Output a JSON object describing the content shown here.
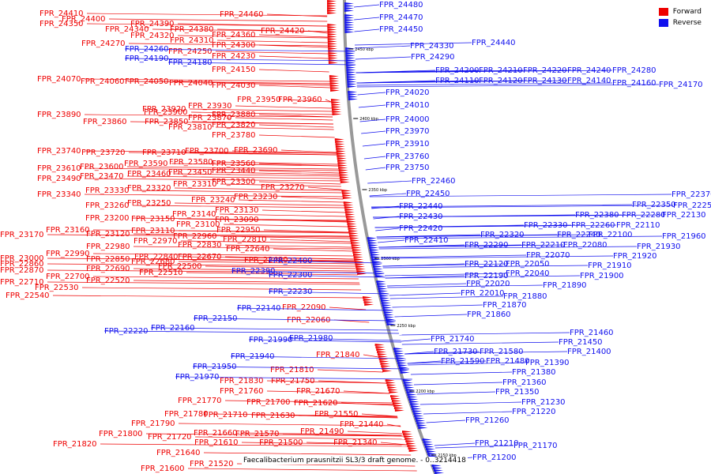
{
  "caption": "Faecalibacterium prausnitzii SL3/3 draft genome. - 0..3214418",
  "legend": [
    {
      "label": "Forward",
      "color": "#ee0000"
    },
    {
      "label": "Reverse",
      "color": "#1010ee"
    }
  ],
  "colors": {
    "forward": "#ee0000",
    "reverse": "#1010ee",
    "backbone": "#999999"
  },
  "scale_marks": [
    "2450 kbp",
    "2400 kbp",
    "2350 kbp",
    "2300 kbp",
    "2250 kbp",
    "2200 kbp",
    "2150 kbp"
  ],
  "forward_labels": [
    "FPR_24410",
    "FPR_24400",
    "FPR_24350",
    "FPR_24390",
    "FPR_24340",
    "FPR_24380",
    "FPR_24320",
    "FPR_24360",
    "FPR_24420",
    "FPR_24460",
    "FPR_24310",
    "FPR_24270",
    "FPR_24300",
    "FPR_24250",
    "FPR_24230",
    "FPR_24150",
    "FPR_24070",
    "FPR_24060",
    "FPR_24050",
    "FPR_24040",
    "FPR_24030",
    "FPR_23950",
    "FPR_23960",
    "FPR_23930",
    "FPR_23920",
    "FPR_23900",
    "FPR_23890",
    "FPR_23880",
    "FPR_23870",
    "FPR_23860",
    "FPR_23850",
    "FPR_23820",
    "FPR_23810",
    "FPR_23780",
    "FPR_23740",
    "FPR_23720",
    "FPR_23710",
    "FPR_23700",
    "FPR_23690",
    "FPR_23590",
    "FPR_23580",
    "FPR_23560",
    "FPR_23610",
    "FPR_23600",
    "FPR_23470",
    "FPR_23460",
    "FPR_23450",
    "FPR_23440",
    "FPR_23490",
    "FPR_23300",
    "FPR_23310",
    "FPR_23320",
    "FPR_23330",
    "FPR_23270",
    "FPR_23340",
    "FPR_23240",
    "FPR_23230",
    "FPR_23260",
    "FPR_23250",
    "FPR_23140",
    "FPR_23130",
    "FPR_23200",
    "FPR_23150",
    "FPR_23090",
    "FPR_23100",
    "FPR_23110",
    "FPR_23160",
    "FPR_23120",
    "FPR_22960",
    "FPR_22950",
    "FPR_23170",
    "FPR_22970",
    "FPR_22810",
    "FPR_22980",
    "FPR_22830",
    "FPR_22990",
    "FPR_22840",
    "FPR_22640",
    "FPR_23000",
    "FPR_22850",
    "FPR_22670",
    "FPR_22480",
    "FPR_22860",
    "FPR_22680",
    "FPR_22500",
    "FPR_22870",
    "FPR_22690",
    "FPR_22700",
    "FPR_22510",
    "FPR_22710",
    "FPR_22520",
    "FPR_22530",
    "FPR_22540",
    "FPR_22090",
    "FPR_22060",
    "FPR_21840",
    "FPR_21810",
    "FPR_21830",
    "FPR_21750",
    "FPR_21760",
    "FPR_21670",
    "FPR_21770",
    "FPR_21700",
    "FPR_21620",
    "FPR_21780",
    "FPR_21710",
    "FPR_21630",
    "FPR_21550",
    "FPR_21790",
    "FPR_21440",
    "FPR_21800",
    "FPR_21720",
    "FPR_21660",
    "FPR_21570",
    "FPR_21490",
    "FPR_21820",
    "FPR_21610",
    "FPR_21500",
    "FPR_21340",
    "FPR_21640",
    "FPR_21600",
    "FPR_21520"
  ],
  "reverse_labels": [
    "FPR_24480",
    "FPR_24470",
    "FPR_24450",
    "FPR_24440",
    "FPR_24330",
    "FPR_24260",
    "FPR_24190",
    "FPR_24180",
    "FPR_24290",
    "FPR_24200",
    "FPR_24210",
    "FPR_24220",
    "FPR_24240",
    "FPR_24280",
    "FPR_24110",
    "FPR_24120",
    "FPR_24130",
    "FPR_24140",
    "FPR_24160",
    "FPR_24170",
    "FPR_24020",
    "FPR_24010",
    "FPR_24000",
    "FPR_23970",
    "FPR_23910",
    "FPR_23760",
    "FPR_23750",
    "FPR_22460",
    "FPR_22450",
    "FPR_22440",
    "FPR_22430",
    "FPR_22420",
    "FPR_22410",
    "FPR_22370",
    "FPR_22350",
    "FPR_22250",
    "FPR_22380",
    "FPR_22280",
    "FPR_22130",
    "FPR_22330",
    "FPR_22260",
    "FPR_22110",
    "FPR_22320",
    "FPR_22240",
    "FPR_22100",
    "FPR_22290",
    "FPR_22210",
    "FPR_22080",
    "FPR_21960",
    "FPR_21930",
    "FPR_22070",
    "FPR_21920",
    "FPR_22400",
    "FPR_22120",
    "FPR_22050",
    "FPR_21910",
    "FPR_22390",
    "FPR_22190",
    "FPR_22040",
    "FPR_21900",
    "FPR_22300",
    "FPR_22020",
    "FPR_21890",
    "FPR_22230",
    "FPR_22010",
    "FPR_21880",
    "FPR_21870",
    "FPR_21860",
    "FPR_22140",
    "FPR_22150",
    "FPR_22160",
    "FPR_22220",
    "FPR_21990",
    "FPR_21980",
    "FPR_21740",
    "FPR_21730",
    "FPR_21580",
    "FPR_21460",
    "FPR_21450",
    "FPR_21400",
    "FPR_21940",
    "FPR_21590",
    "FPR_21480",
    "FPR_21390",
    "FPR_21950",
    "FPR_21380",
    "FPR_21970",
    "FPR_21360",
    "FPR_21350",
    "FPR_21230",
    "FPR_21220",
    "FPR_21260",
    "FPR_21210",
    "FPR_21170",
    "FPR_21200"
  ]
}
